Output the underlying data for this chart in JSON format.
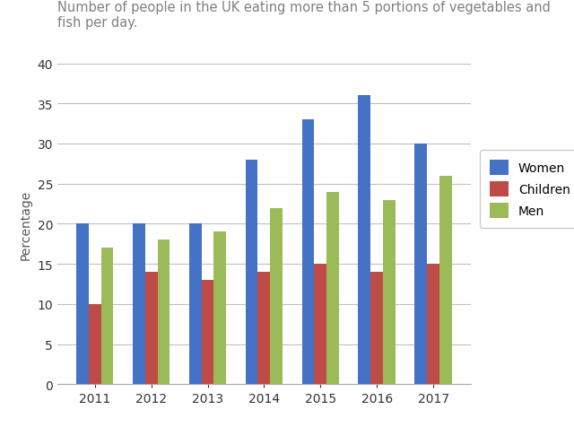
{
  "title": "Number of people in the UK eating more than 5 portions of vegetables and fish per day.",
  "ylabel": "Percentage",
  "years": [
    "2011",
    "2012",
    "2013",
    "2014",
    "2015",
    "2016",
    "2017"
  ],
  "women": [
    20,
    20,
    20,
    28,
    33,
    36,
    30
  ],
  "children": [
    10,
    14,
    13,
    14,
    15,
    14,
    15
  ],
  "men": [
    17,
    18,
    19,
    22,
    24,
    23,
    26
  ],
  "color_women": "#4472C4",
  "color_children": "#BE4B48",
  "color_men": "#9BBB59",
  "ylim": [
    0,
    40
  ],
  "yticks": [
    0,
    5,
    10,
    15,
    20,
    25,
    30,
    35,
    40
  ],
  "legend_labels": [
    "Women",
    "Children",
    "Men"
  ],
  "bar_width": 0.22,
  "title_fontsize": 10.5,
  "axis_label_fontsize": 10,
  "tick_fontsize": 10,
  "legend_fontsize": 10,
  "background_color": "#FFFFFF",
  "grid_color": "#C0C0C0"
}
